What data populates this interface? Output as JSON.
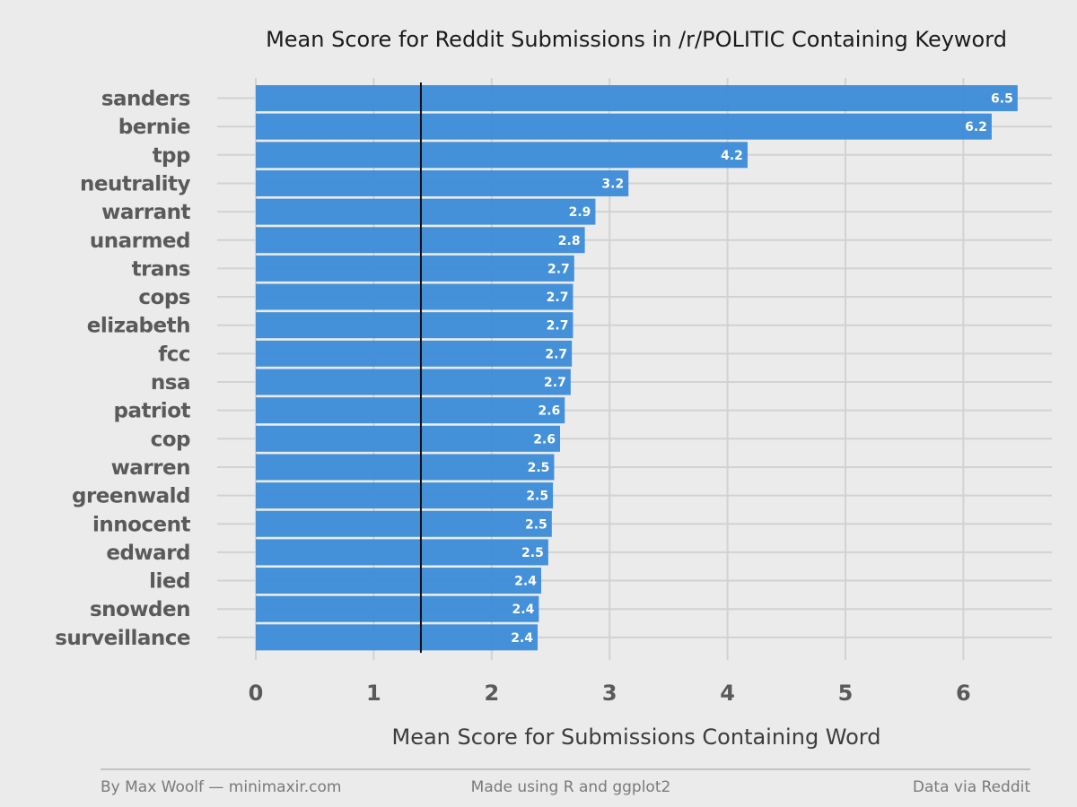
{
  "chart_data": {
    "type": "bar",
    "orientation": "horizontal",
    "title": "Mean Score for Reddit Submissions in /r/POLITIC Containing Keyword",
    "xlabel": "Mean Score for Submissions Containing Word",
    "ylabel": "",
    "categories": [
      "sanders",
      "bernie",
      "tpp",
      "neutrality",
      "warrant",
      "unarmed",
      "trans",
      "cops",
      "elizabeth",
      "fcc",
      "nsa",
      "patriot",
      "cop",
      "warren",
      "greenwald",
      "innocent",
      "edward",
      "lied",
      "snowden",
      "surveillance"
    ],
    "values": [
      6.46,
      6.24,
      4.17,
      3.16,
      2.88,
      2.79,
      2.7,
      2.69,
      2.69,
      2.68,
      2.67,
      2.62,
      2.58,
      2.53,
      2.52,
      2.51,
      2.48,
      2.42,
      2.4,
      2.39
    ],
    "value_labels": [
      "6.5",
      "6.2",
      "4.2",
      "3.2",
      "2.9",
      "2.8",
      "2.7",
      "2.7",
      "2.7",
      "2.7",
      "2.7",
      "2.6",
      "2.6",
      "2.5",
      "2.5",
      "2.5",
      "2.5",
      "2.4",
      "2.4",
      "2.4"
    ],
    "xlim": [
      0,
      6.75
    ],
    "xticks": [
      0,
      1,
      2,
      3,
      4,
      5,
      6
    ],
    "xtick_labels": [
      "0",
      "1",
      "2",
      "3",
      "4",
      "5",
      "6"
    ],
    "reference_line": 1.4,
    "grid": true,
    "bar_color": "#3b8bd8"
  },
  "footer": {
    "left": "By Max Woolf — minimaxir.com",
    "center": "Made using R and ggplot2",
    "right": "Data via Reddit"
  }
}
